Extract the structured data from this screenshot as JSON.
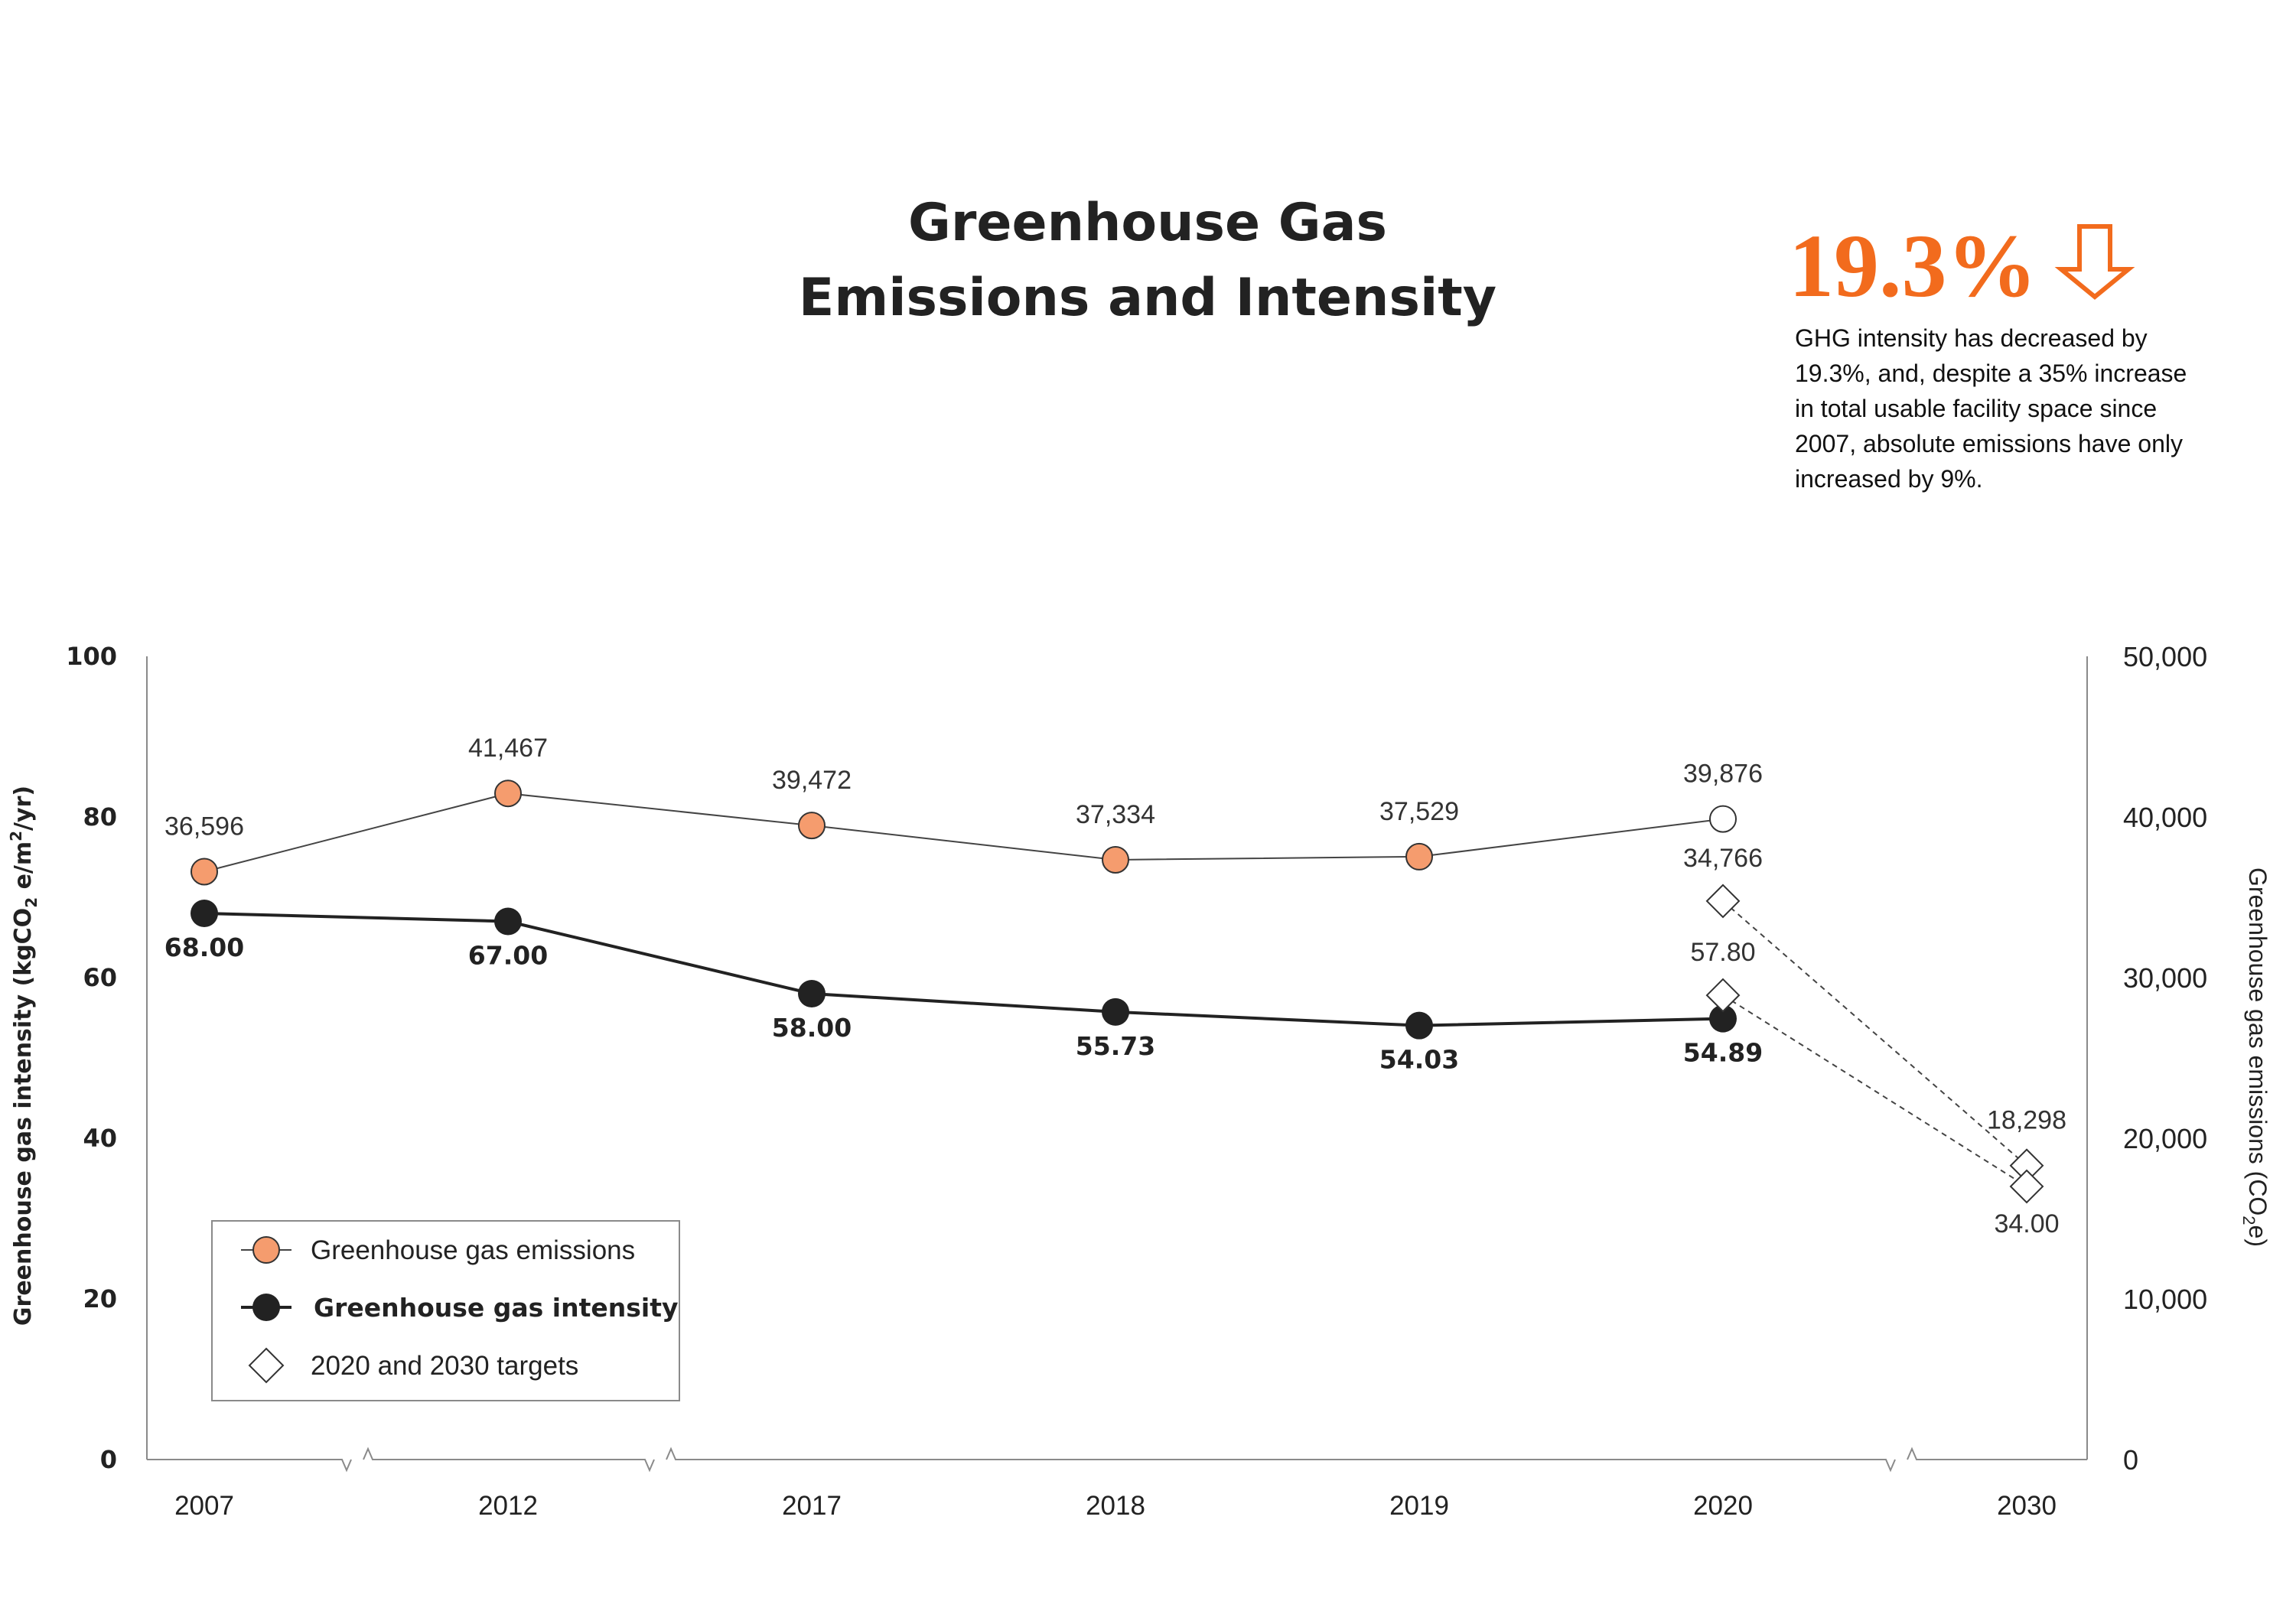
{
  "header": {
    "title_line1": "Greenhouse Gas",
    "title_line2": "Emissions and Intensity"
  },
  "highlight": {
    "value": "19.3%",
    "arrow_icon": "down-arrow-outline-icon",
    "lines": [
      "GHG intensity has decreased by",
      "19.3%, and, despite a 35% increase",
      "in total usable facility space since",
      "2007, absolute emissions have only",
      "increased by 9%."
    ]
  },
  "colors": {
    "accent": "#f26b1d",
    "emissions_marker": "#f59c6e",
    "intensity": "#222222",
    "axis": "#8a8a8a"
  },
  "chart_data": {
    "type": "line",
    "categories": [
      "2007",
      "2012",
      "2017",
      "2018",
      "2019",
      "2020",
      "2030"
    ],
    "axis_breaks_after": [
      "2007",
      "2012",
      "2020"
    ],
    "y_left": {
      "label_prefix": "Greenhouse gas intensity (kgCO",
      "label_sub": "2",
      "label_mid": " e/m",
      "label_sup": "2",
      "label_suffix": "/yr)",
      "ylim": [
        0,
        100
      ],
      "ticks": [
        "0",
        "20",
        "40",
        "60",
        "80",
        "100"
      ]
    },
    "y_right": {
      "label_prefix": "Greenhouse gas emissions (CO",
      "label_sub": "2",
      "label_suffix": "e)",
      "ylim": [
        0,
        50000
      ],
      "ticks": [
        "0",
        "10,000",
        "20,000",
        "30,000",
        "40,000",
        "50,000"
      ]
    },
    "series": [
      {
        "name": "Greenhouse gas emissions",
        "axis": "right",
        "points": [
          {
            "x": "2007",
            "y": 36596,
            "label": "36,596"
          },
          {
            "x": "2012",
            "y": 41467,
            "label": "41,467"
          },
          {
            "x": "2017",
            "y": 39472,
            "label": "39,472"
          },
          {
            "x": "2018",
            "y": 37334,
            "label": "37,334"
          },
          {
            "x": "2019",
            "y": 37529,
            "label": "37,529"
          },
          {
            "x": "2020",
            "y": 39876,
            "label": "39,876",
            "hollow": true
          }
        ]
      },
      {
        "name": "Greenhouse gas intensity",
        "axis": "left",
        "points": [
          {
            "x": "2007",
            "y": 68.0,
            "label": "68.00"
          },
          {
            "x": "2012",
            "y": 67.0,
            "label": "67.00"
          },
          {
            "x": "2017",
            "y": 58.0,
            "label": "58.00"
          },
          {
            "x": "2018",
            "y": 55.73,
            "label": "55.73"
          },
          {
            "x": "2019",
            "y": 54.03,
            "label": "54.03"
          },
          {
            "x": "2020",
            "y": 54.89,
            "label": "54.89"
          }
        ]
      },
      {
        "name": "2020 and 2030 targets",
        "lines": [
          {
            "axis": "right",
            "points": [
              {
                "x": "2020",
                "y": 34766,
                "label": "34,766"
              },
              {
                "x": "2030",
                "y": 18298,
                "label": "18,298"
              }
            ]
          },
          {
            "axis": "left",
            "points": [
              {
                "x": "2020",
                "y": 57.8,
                "label": "57.80"
              },
              {
                "x": "2030",
                "y": 34.0,
                "label": "34.00"
              }
            ]
          }
        ]
      }
    ],
    "legend": {
      "position": "bottom-left",
      "items": [
        {
          "label": "Greenhouse gas emissions",
          "marker": "orange-circle"
        },
        {
          "label": "Greenhouse gas intensity",
          "marker": "black-circle"
        },
        {
          "label": "2020 and 2030 targets",
          "marker": "hollow-diamond"
        }
      ]
    }
  }
}
